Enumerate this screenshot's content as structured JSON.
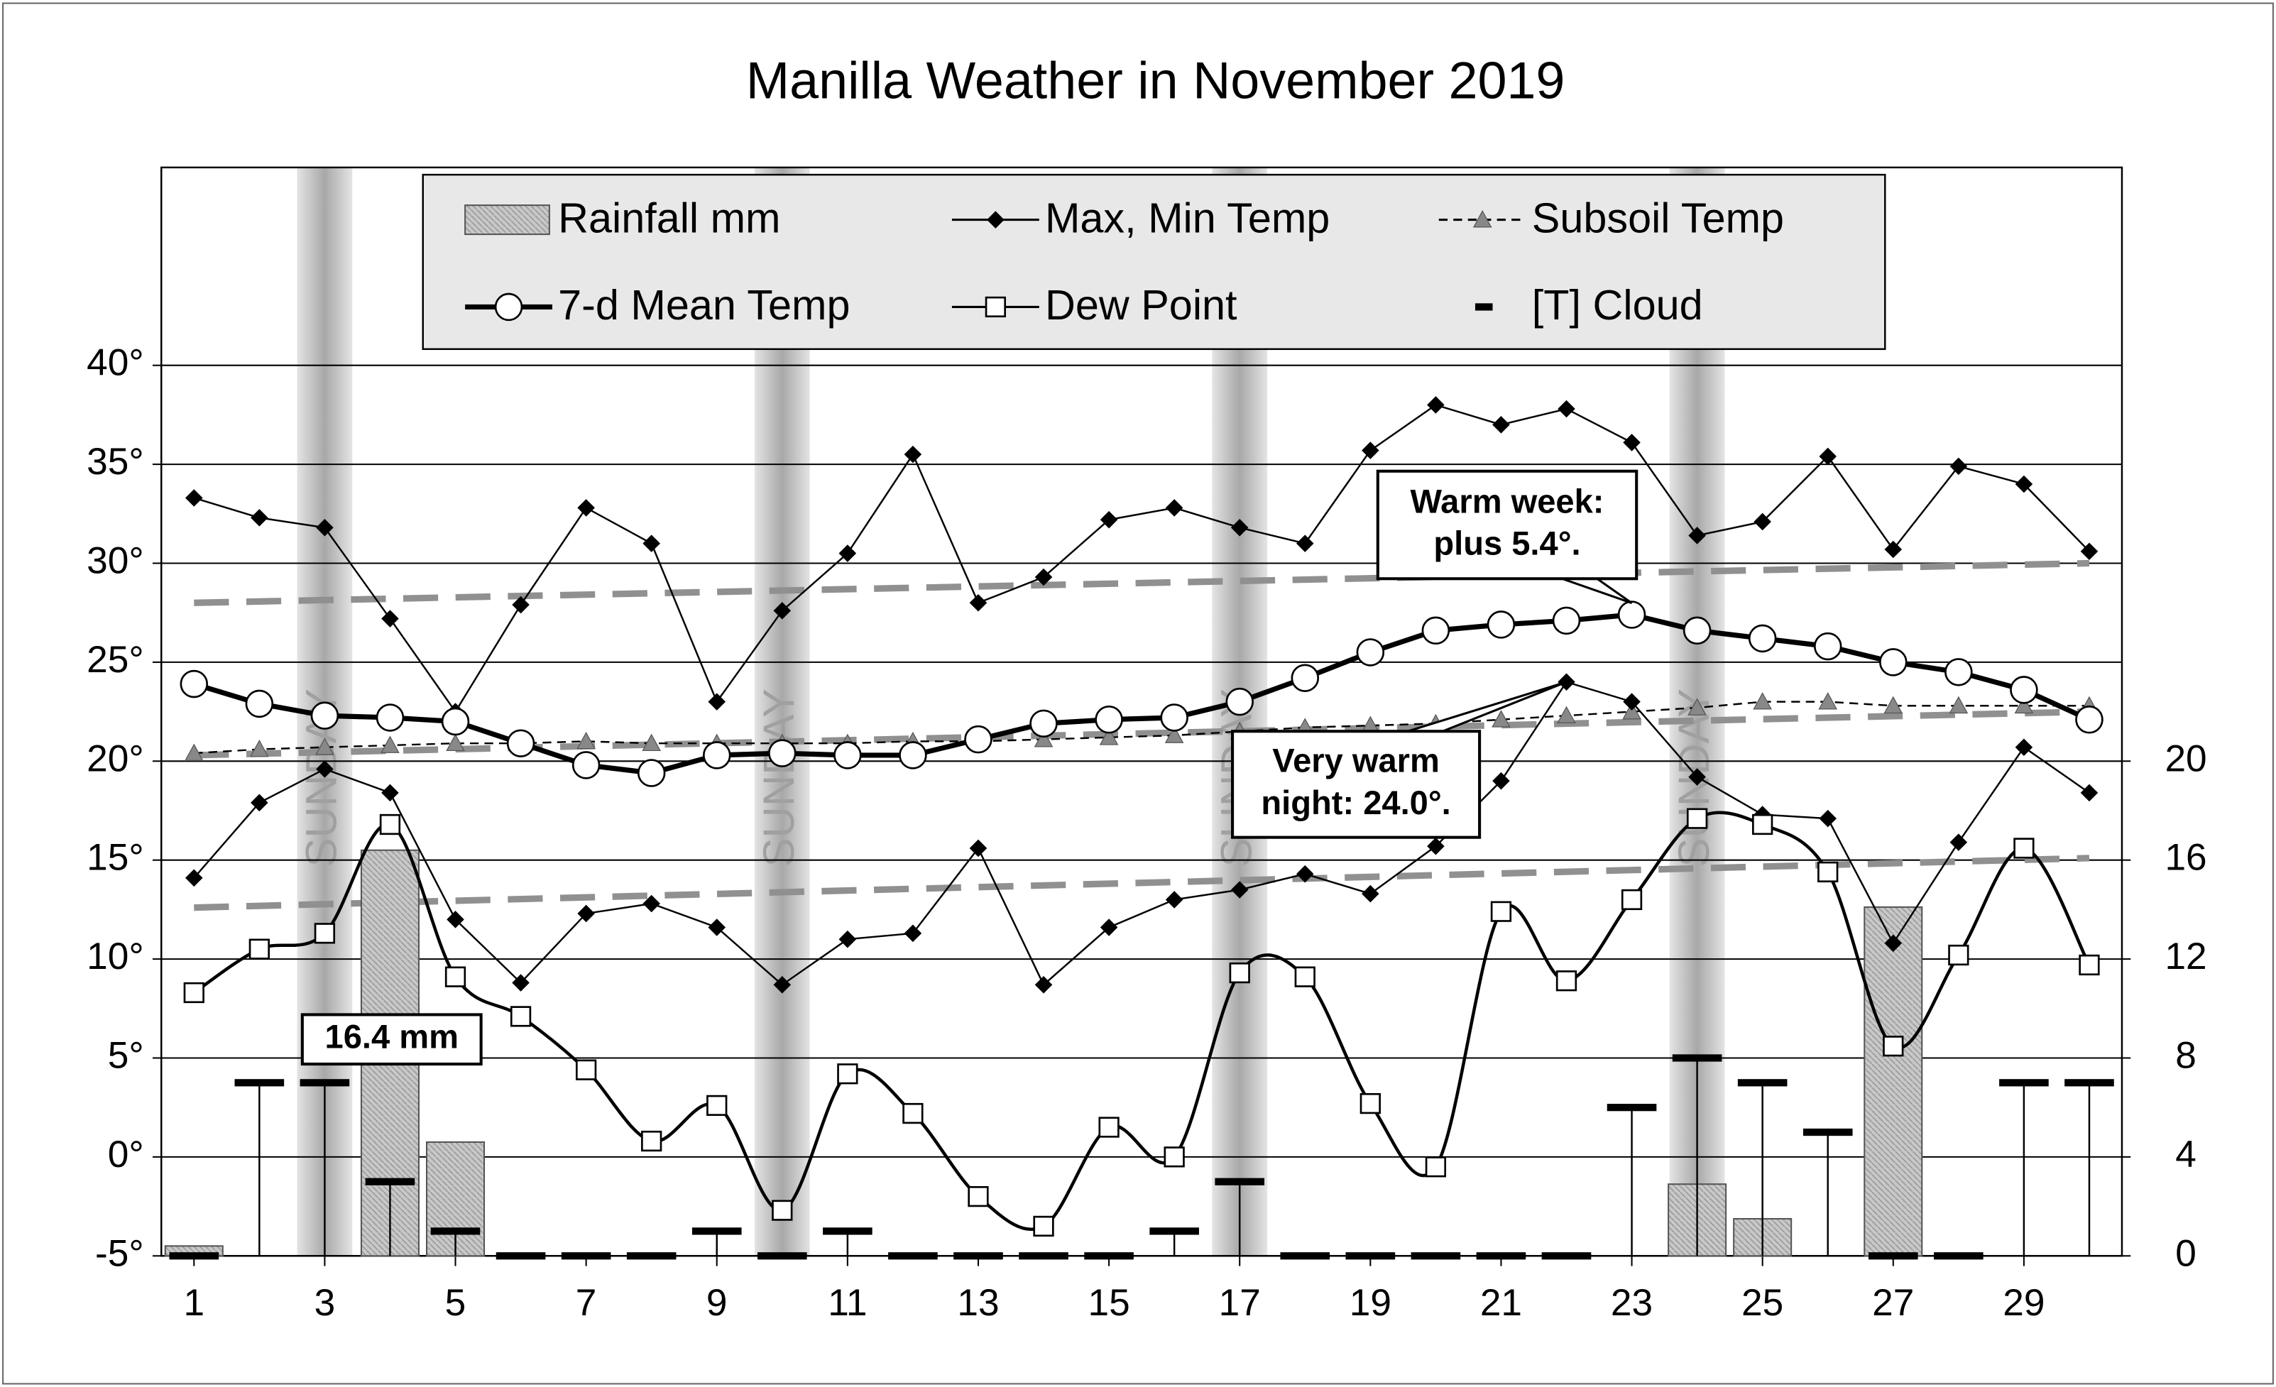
{
  "chart_data": {
    "type": "combo",
    "title": "Manilla Weather in November 2019",
    "x": [
      1,
      2,
      3,
      4,
      5,
      6,
      7,
      8,
      9,
      10,
      11,
      12,
      13,
      14,
      15,
      16,
      17,
      18,
      19,
      20,
      21,
      22,
      23,
      24,
      25,
      26,
      27,
      28,
      29,
      30
    ],
    "xlim": [
      0.5,
      30.5
    ],
    "xticks": [
      1,
      3,
      5,
      7,
      9,
      11,
      13,
      15,
      17,
      19,
      21,
      23,
      25,
      27,
      29
    ],
    "ylim": [
      -5,
      50
    ],
    "yticks": [
      {
        "value": -5,
        "label": "-5°"
      },
      {
        "value": 0,
        "label": "0°"
      },
      {
        "value": 5,
        "label": "5°"
      },
      {
        "value": 10,
        "label": "10°"
      },
      {
        "value": 15,
        "label": "15°"
      },
      {
        "value": 20,
        "label": "20°"
      },
      {
        "value": 25,
        "label": "25°"
      },
      {
        "value": 30,
        "label": "30°"
      },
      {
        "value": 35,
        "label": "35°"
      },
      {
        "value": 40,
        "label": "40°"
      }
    ],
    "y2lim": [
      0,
      44
    ],
    "y2ticks": [
      0,
      4,
      8,
      12,
      16,
      20
    ],
    "grid": true,
    "sundays": [
      3,
      10,
      17,
      24
    ],
    "sunday_label": "SUNDAY",
    "trend_lines": [
      [
        28.0,
        30.0
      ],
      [
        20.3,
        22.5
      ],
      [
        12.6,
        15.1
      ]
    ],
    "series": [
      {
        "name": "Rainfall mm",
        "type": "bar",
        "axis": "y2",
        "color": "#bbbbbb",
        "values": [
          0.4,
          0,
          0,
          16.4,
          4.6,
          0,
          0,
          0,
          0,
          0,
          0,
          0,
          0,
          0,
          0,
          0,
          0,
          0,
          0,
          0,
          0,
          0,
          0,
          2.9,
          1.5,
          0,
          14.1,
          0,
          0,
          0
        ]
      },
      {
        "name": "Max, Min Temp",
        "type": "line",
        "marker": "diamond",
        "color": "#000000",
        "values": [
          33.3,
          32.3,
          31.8,
          27.2,
          22.5,
          27.9,
          32.8,
          31.0,
          23.0,
          27.6,
          30.5,
          35.5,
          28.0,
          29.3,
          32.2,
          32.8,
          31.8,
          31.0,
          35.7,
          38.0,
          37.0,
          37.8,
          36.1,
          31.4,
          32.1,
          35.4,
          30.7,
          34.9,
          34.0,
          30.6
        ],
        "values_min": [
          14.1,
          17.9,
          19.6,
          18.4,
          12.0,
          8.8,
          12.3,
          12.8,
          11.6,
          8.7,
          11.0,
          11.3,
          15.6,
          8.7,
          11.6,
          13.0,
          13.5,
          14.3,
          13.3,
          15.7,
          19.0,
          24.0,
          23.0,
          19.2,
          17.3,
          17.1,
          10.8,
          15.9,
          20.7,
          18.4
        ]
      },
      {
        "name": "Subsoil Temp",
        "type": "line",
        "marker": "triangle",
        "dashed": true,
        "color": "#000000",
        "values": [
          20.4,
          20.6,
          20.7,
          20.8,
          20.9,
          20.9,
          21.0,
          20.9,
          20.9,
          20.9,
          20.9,
          21.0,
          21.0,
          21.1,
          21.2,
          21.3,
          21.5,
          21.7,
          21.8,
          21.9,
          22.1,
          22.3,
          22.5,
          22.7,
          23.0,
          23.0,
          22.8,
          22.8,
          22.8,
          22.8
        ]
      },
      {
        "name": "7-d Mean Temp",
        "type": "line",
        "marker": "circle",
        "color": "#000000",
        "values": [
          23.9,
          22.9,
          22.3,
          22.2,
          22.0,
          20.9,
          19.8,
          19.4,
          20.3,
          20.4,
          20.3,
          20.3,
          21.1,
          21.9,
          22.1,
          22.2,
          23.0,
          24.2,
          25.5,
          26.6,
          26.9,
          27.1,
          27.4,
          26.6,
          26.2,
          25.8,
          25.0,
          24.5,
          23.6,
          22.1
        ]
      },
      {
        "name": "Dew Point",
        "type": "line",
        "marker": "square",
        "smooth": true,
        "color": "#000000",
        "values": [
          8.3,
          10.5,
          11.3,
          16.8,
          9.1,
          7.1,
          4.4,
          0.8,
          2.6,
          -2.7,
          4.2,
          2.2,
          -2.0,
          -3.5,
          1.5,
          0.0,
          9.3,
          9.1,
          2.7,
          -0.5,
          12.4,
          8.9,
          13.0,
          17.1,
          16.8,
          14.4,
          5.6,
          10.2,
          15.6,
          9.7
        ]
      },
      {
        "name": "[T] Cloud",
        "type": "dash",
        "axis": "y2",
        "color": "#000000",
        "values": [
          0,
          7,
          7,
          3,
          1,
          0,
          0,
          0,
          1,
          0,
          1,
          0,
          0,
          0,
          0,
          1,
          3,
          0,
          0,
          0,
          0,
          0,
          6,
          8,
          7,
          5,
          0,
          0,
          7,
          7
        ]
      }
    ],
    "annotations": [
      {
        "text": [
          "16.4 mm"
        ]
      },
      {
        "text": [
          "Warm week:",
          "plus 5.4°."
        ]
      },
      {
        "text": [
          "Very warm",
          "night: 24.0°."
        ]
      }
    ]
  }
}
